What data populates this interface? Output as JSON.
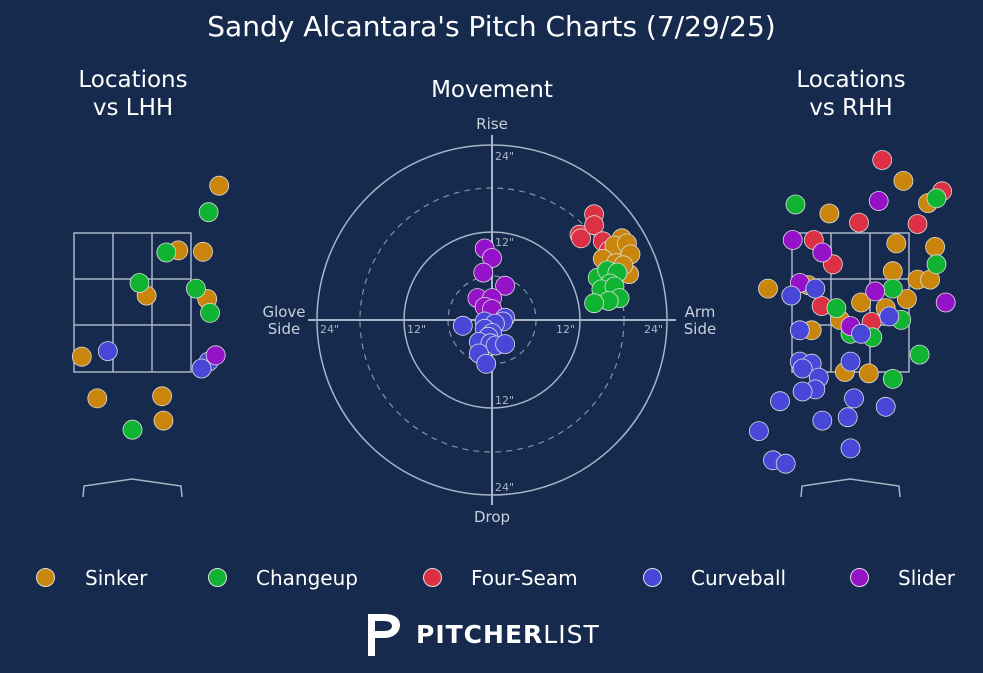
{
  "title": "Sandy Alcantara's Pitch Charts (7/29/25)",
  "panels": {
    "lhh_title_line1": "Locations",
    "lhh_title_line2": "vs LHH",
    "movement_title": "Movement",
    "rhh_title_line1": "Locations",
    "rhh_title_line2": "vs RHH"
  },
  "movement_labels": {
    "top": "Rise",
    "bottom": "Drop",
    "left_line1": "Glove",
    "left_line2": "Side",
    "right_line1": "Arm",
    "right_line2": "Side",
    "ring_inner": "12\"",
    "ring_outer": "24\""
  },
  "colors": {
    "background": "#152a4c",
    "Sinker": "#c9850c",
    "Changeup": "#10b432",
    "Four-Seam": "#dc3045",
    "Curveball": "#4848d8",
    "Slider": "#9612c8",
    "grid": "#a8b4c8"
  },
  "legend": [
    {
      "name": "Sinker",
      "color": "#c9850c"
    },
    {
      "name": "Changeup",
      "color": "#10b432"
    },
    {
      "name": "Four-Seam",
      "color": "#dc3045"
    },
    {
      "name": "Curveball",
      "color": "#4848d8"
    },
    {
      "name": "Slider",
      "color": "#9612c8"
    }
  ],
  "logo": {
    "bold": "PITCHER",
    "light": "LIST"
  },
  "chart_data": [
    {
      "type": "scatter",
      "title": "Locations vs LHH",
      "xlim": [
        -2.0,
        2.0
      ],
      "ylim": [
        -0.5,
        5.0
      ],
      "strike_zone": {
        "x": [
          -0.83,
          0.83
        ],
        "y": [
          1.5,
          3.5
        ]
      },
      "points": [
        {
          "pitch": "Sinker",
          "x": 1.23,
          "y": 4.18
        },
        {
          "pitch": "Sinker",
          "x": 0.65,
          "y": 3.25
        },
        {
          "pitch": "Sinker",
          "x": 1.0,
          "y": 3.23
        },
        {
          "pitch": "Sinker",
          "x": 0.2,
          "y": 2.6
        },
        {
          "pitch": "Sinker",
          "x": 1.06,
          "y": 2.55
        },
        {
          "pitch": "Sinker",
          "x": -0.72,
          "y": 1.72
        },
        {
          "pitch": "Sinker",
          "x": -0.5,
          "y": 1.12
        },
        {
          "pitch": "Sinker",
          "x": 0.42,
          "y": 1.15
        },
        {
          "pitch": "Sinker",
          "x": 0.44,
          "y": 0.8
        },
        {
          "pitch": "Changeup",
          "x": 1.08,
          "y": 3.8
        },
        {
          "pitch": "Changeup",
          "x": 0.48,
          "y": 3.22
        },
        {
          "pitch": "Changeup",
          "x": 0.1,
          "y": 2.78
        },
        {
          "pitch": "Changeup",
          "x": 0.9,
          "y": 2.7
        },
        {
          "pitch": "Changeup",
          "x": 1.1,
          "y": 2.35
        },
        {
          "pitch": "Changeup",
          "x": 0.0,
          "y": 0.67
        },
        {
          "pitch": "Curveball",
          "x": -0.35,
          "y": 1.8
        },
        {
          "pitch": "Curveball",
          "x": 1.08,
          "y": 1.65
        },
        {
          "pitch": "Curveball",
          "x": 0.98,
          "y": 1.55
        },
        {
          "pitch": "Slider",
          "x": 1.18,
          "y": 1.74
        }
      ]
    },
    {
      "type": "scatter",
      "title": "Movement",
      "xlabel_left": "Glove Side",
      "xlabel_right": "Arm Side",
      "ylabel_top": "Rise",
      "ylabel_bottom": "Drop",
      "rings_inches": [
        6,
        12,
        18,
        24
      ],
      "xlim": [
        -24,
        24
      ],
      "ylim": [
        -24,
        24
      ],
      "points": [
        {
          "pitch": "Four-Seam",
          "x": 14.0,
          "y": 14.5
        },
        {
          "pitch": "Four-Seam",
          "x": 12.0,
          "y": 11.7
        },
        {
          "pitch": "Four-Seam",
          "x": 12.2,
          "y": 11.2
        },
        {
          "pitch": "Four-Seam",
          "x": 14.0,
          "y": 13.0
        },
        {
          "pitch": "Four-Seam",
          "x": 15.2,
          "y": 10.8
        },
        {
          "pitch": "Four-Seam",
          "x": 17.5,
          "y": 10.2
        },
        {
          "pitch": "Four-Seam",
          "x": 18.5,
          "y": 8.8
        },
        {
          "pitch": "Four-Seam",
          "x": 16.0,
          "y": 9.5
        },
        {
          "pitch": "Sinker",
          "x": 17.8,
          "y": 11.2
        },
        {
          "pitch": "Sinker",
          "x": 16.8,
          "y": 10.2
        },
        {
          "pitch": "Sinker",
          "x": 18.5,
          "y": 10.5
        },
        {
          "pitch": "Sinker",
          "x": 19.0,
          "y": 9.0
        },
        {
          "pitch": "Sinker",
          "x": 15.2,
          "y": 8.4
        },
        {
          "pitch": "Sinker",
          "x": 16.5,
          "y": 6.5
        },
        {
          "pitch": "Sinker",
          "x": 18.8,
          "y": 6.3
        },
        {
          "pitch": "Sinker",
          "x": 17.0,
          "y": 7.8
        },
        {
          "pitch": "Sinker",
          "x": 18.0,
          "y": 7.5
        },
        {
          "pitch": "Changeup",
          "x": 14.5,
          "y": 5.8
        },
        {
          "pitch": "Changeup",
          "x": 15.8,
          "y": 6.8
        },
        {
          "pitch": "Changeup",
          "x": 17.2,
          "y": 6.5
        },
        {
          "pitch": "Changeup",
          "x": 16.2,
          "y": 5.0
        },
        {
          "pitch": "Changeup",
          "x": 15.0,
          "y": 4.2
        },
        {
          "pitch": "Changeup",
          "x": 16.8,
          "y": 4.6
        },
        {
          "pitch": "Changeup",
          "x": 17.5,
          "y": 3.0
        },
        {
          "pitch": "Changeup",
          "x": 16.0,
          "y": 2.6
        },
        {
          "pitch": "Changeup",
          "x": 14.0,
          "y": 2.3
        },
        {
          "pitch": "Slider",
          "x": -1.0,
          "y": 9.8
        },
        {
          "pitch": "Slider",
          "x": 0.0,
          "y": 8.5
        },
        {
          "pitch": "Slider",
          "x": -1.2,
          "y": 6.5
        },
        {
          "pitch": "Slider",
          "x": 1.8,
          "y": 4.7
        },
        {
          "pitch": "Slider",
          "x": -2.0,
          "y": 3.0
        },
        {
          "pitch": "Slider",
          "x": 0.0,
          "y": 3.0
        },
        {
          "pitch": "Slider",
          "x": -1.0,
          "y": 1.8
        },
        {
          "pitch": "Slider",
          "x": 0.0,
          "y": 1.5
        },
        {
          "pitch": "Curveball",
          "x": -4.0,
          "y": -0.8
        },
        {
          "pitch": "Curveball",
          "x": -1.0,
          "y": -0.2
        },
        {
          "pitch": "Curveball",
          "x": 1.8,
          "y": 0.3
        },
        {
          "pitch": "Curveball",
          "x": 1.5,
          "y": -0.2
        },
        {
          "pitch": "Curveball",
          "x": 0.4,
          "y": -0.5
        },
        {
          "pitch": "Curveball",
          "x": -1.0,
          "y": -1.2
        },
        {
          "pitch": "Curveball",
          "x": 0.0,
          "y": -1.8
        },
        {
          "pitch": "Curveball",
          "x": -0.5,
          "y": -2.3
        },
        {
          "pitch": "Curveball",
          "x": -1.8,
          "y": -3.0
        },
        {
          "pitch": "Curveball",
          "x": -0.2,
          "y": -3.2
        },
        {
          "pitch": "Curveball",
          "x": 0.5,
          "y": -3.5
        },
        {
          "pitch": "Curveball",
          "x": 1.8,
          "y": -3.3
        },
        {
          "pitch": "Curveball",
          "x": -1.8,
          "y": -4.6
        },
        {
          "pitch": "Curveball",
          "x": -0.8,
          "y": -6.0
        }
      ]
    },
    {
      "type": "scatter",
      "title": "Locations vs RHH",
      "xlim": [
        -2.0,
        2.0
      ],
      "ylim": [
        -0.5,
        5.0
      ],
      "strike_zone": {
        "x": [
          -0.83,
          0.83
        ],
        "y": [
          1.5,
          3.5
        ]
      },
      "points": [
        {
          "pitch": "Four-Seam",
          "x": 0.45,
          "y": 4.55
        },
        {
          "pitch": "Four-Seam",
          "x": 1.3,
          "y": 4.1
        },
        {
          "pitch": "Four-Seam",
          "x": 0.12,
          "y": 3.65
        },
        {
          "pitch": "Four-Seam",
          "x": 0.95,
          "y": 3.63
        },
        {
          "pitch": "Four-Seam",
          "x": -0.52,
          "y": 3.4
        },
        {
          "pitch": "Four-Seam",
          "x": -0.25,
          "y": 3.05
        },
        {
          "pitch": "Four-Seam",
          "x": -0.41,
          "y": 2.45
        },
        {
          "pitch": "Four-Seam",
          "x": 0.3,
          "y": 2.22
        },
        {
          "pitch": "Sinker",
          "x": 0.75,
          "y": 4.25
        },
        {
          "pitch": "Sinker",
          "x": 1.1,
          "y": 3.93
        },
        {
          "pitch": "Sinker",
          "x": -0.3,
          "y": 3.78
        },
        {
          "pitch": "Sinker",
          "x": 0.65,
          "y": 3.35
        },
        {
          "pitch": "Sinker",
          "x": 1.2,
          "y": 3.3
        },
        {
          "pitch": "Sinker",
          "x": 0.6,
          "y": 2.95
        },
        {
          "pitch": "Sinker",
          "x": 0.95,
          "y": 2.83
        },
        {
          "pitch": "Sinker",
          "x": 1.13,
          "y": 2.83
        },
        {
          "pitch": "Sinker",
          "x": -1.17,
          "y": 2.7
        },
        {
          "pitch": "Sinker",
          "x": -0.6,
          "y": 2.75
        },
        {
          "pitch": "Sinker",
          "x": 0.8,
          "y": 2.55
        },
        {
          "pitch": "Sinker",
          "x": 0.15,
          "y": 2.5
        },
        {
          "pitch": "Sinker",
          "x": 0.5,
          "y": 2.42
        },
        {
          "pitch": "Sinker",
          "x": -0.15,
          "y": 2.25
        },
        {
          "pitch": "Sinker",
          "x": -0.55,
          "y": 2.1
        },
        {
          "pitch": "Sinker",
          "x": -0.08,
          "y": 1.5
        },
        {
          "pitch": "Sinker",
          "x": 0.26,
          "y": 1.48
        },
        {
          "pitch": "Changeup",
          "x": -0.78,
          "y": 3.91
        },
        {
          "pitch": "Changeup",
          "x": 1.22,
          "y": 4.0
        },
        {
          "pitch": "Changeup",
          "x": 1.22,
          "y": 3.05
        },
        {
          "pitch": "Changeup",
          "x": 0.6,
          "y": 2.7
        },
        {
          "pitch": "Changeup",
          "x": -0.2,
          "y": 2.42
        },
        {
          "pitch": "Changeup",
          "x": 0.72,
          "y": 2.25
        },
        {
          "pitch": "Changeup",
          "x": 0.0,
          "y": 2.05
        },
        {
          "pitch": "Changeup",
          "x": 0.31,
          "y": 2.0
        },
        {
          "pitch": "Changeup",
          "x": 0.98,
          "y": 1.75
        },
        {
          "pitch": "Changeup",
          "x": 0.6,
          "y": 1.4
        },
        {
          "pitch": "Slider",
          "x": 0.4,
          "y": 3.96
        },
        {
          "pitch": "Slider",
          "x": -0.82,
          "y": 3.4
        },
        {
          "pitch": "Slider",
          "x": -0.4,
          "y": 3.22
        },
        {
          "pitch": "Slider",
          "x": -0.72,
          "y": 2.78
        },
        {
          "pitch": "Slider",
          "x": 0.35,
          "y": 2.66
        },
        {
          "pitch": "Slider",
          "x": 1.35,
          "y": 2.5
        },
        {
          "pitch": "Slider",
          "x": 0.0,
          "y": 2.16
        },
        {
          "pitch": "Curveball",
          "x": -0.84,
          "y": 2.6
        },
        {
          "pitch": "Curveball",
          "x": -0.5,
          "y": 2.7
        },
        {
          "pitch": "Curveball",
          "x": 0.55,
          "y": 2.3
        },
        {
          "pitch": "Curveball",
          "x": -0.72,
          "y": 2.1
        },
        {
          "pitch": "Curveball",
          "x": 0.15,
          "y": 2.05
        },
        {
          "pitch": "Curveball",
          "x": -0.72,
          "y": 1.65
        },
        {
          "pitch": "Curveball",
          "x": -0.55,
          "y": 1.62
        },
        {
          "pitch": "Curveball",
          "x": -0.68,
          "y": 1.55
        },
        {
          "pitch": "Curveball",
          "x": -0.45,
          "y": 1.42
        },
        {
          "pitch": "Curveball",
          "x": 0.0,
          "y": 1.65
        },
        {
          "pitch": "Curveball",
          "x": -0.5,
          "y": 1.25
        },
        {
          "pitch": "Curveball",
          "x": -0.68,
          "y": 1.22
        },
        {
          "pitch": "Curveball",
          "x": 0.05,
          "y": 1.12
        },
        {
          "pitch": "Curveball",
          "x": -1.0,
          "y": 1.08
        },
        {
          "pitch": "Curveball",
          "x": 0.5,
          "y": 1.0
        },
        {
          "pitch": "Curveball",
          "x": -0.4,
          "y": 0.8
        },
        {
          "pitch": "Curveball",
          "x": -0.04,
          "y": 0.85
        },
        {
          "pitch": "Curveball",
          "x": -1.3,
          "y": 0.65
        },
        {
          "pitch": "Curveball",
          "x": 0.0,
          "y": 0.4
        },
        {
          "pitch": "Curveball",
          "x": -1.1,
          "y": 0.23
        },
        {
          "pitch": "Curveball",
          "x": -0.92,
          "y": 0.18
        }
      ]
    }
  ]
}
